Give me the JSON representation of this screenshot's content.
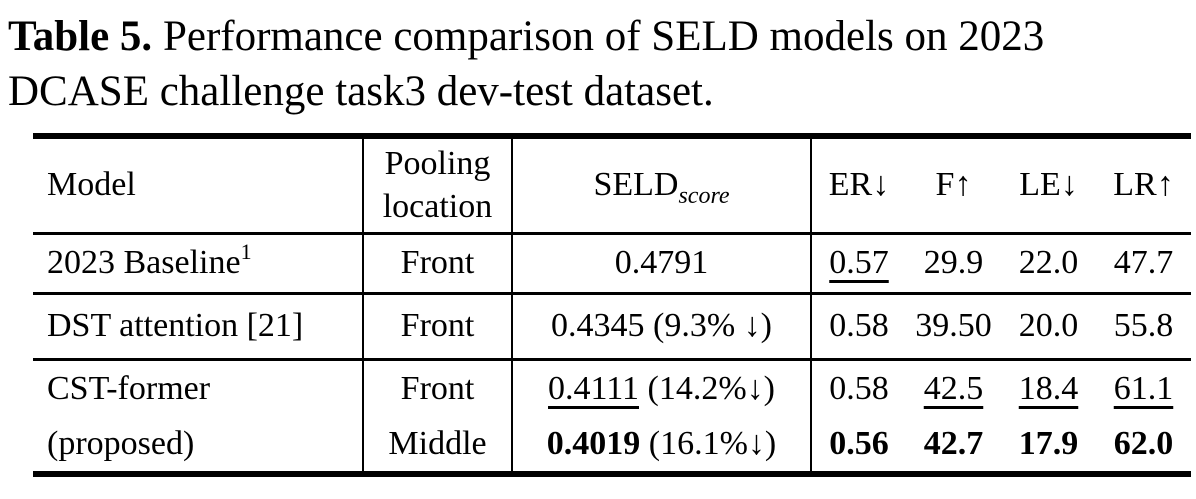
{
  "caption": {
    "bold_label": "Table 5.",
    "line1_rest": " Performance comparison of SELD models on 2023",
    "line2": "DCASE challenge task3 dev-test dataset."
  },
  "table": {
    "headers": {
      "model": "Model",
      "pooling_line1": "Pooling",
      "pooling_line2": "location",
      "seld_main": "SELD",
      "seld_sub": "score",
      "metrics": [
        "ER↓",
        "F↑",
        "LE↓",
        "LR↑"
      ]
    },
    "rows": {
      "baseline": {
        "model": "2023 Baseline",
        "model_sup": "1",
        "pooling": "Front",
        "seld": "0.4791",
        "er": "0.57",
        "f": "29.9",
        "le": "22.0",
        "lr": "47.7"
      },
      "dst": {
        "model": "DST attention [21]",
        "pooling": "Front",
        "seld_main": "0.4345",
        "seld_paren": "(9.3% ↓)",
        "er": "0.58",
        "f": "39.50",
        "le": "20.0",
        "lr": "55.8"
      },
      "cst": {
        "model_line1": "CST-former",
        "model_line2": "(proposed)"
      },
      "cst_front": {
        "pooling": "Front",
        "seld_main": "0.4111",
        "seld_paren": "(14.2%↓)",
        "er": "0.58",
        "f": "42.5",
        "le": "18.4",
        "lr": "61.1"
      },
      "cst_middle": {
        "pooling": "Middle",
        "seld_main": "0.4019",
        "seld_paren": "(16.1%↓)",
        "er": "0.56",
        "f": "42.7",
        "le": "17.9",
        "lr": "62.0"
      }
    }
  }
}
